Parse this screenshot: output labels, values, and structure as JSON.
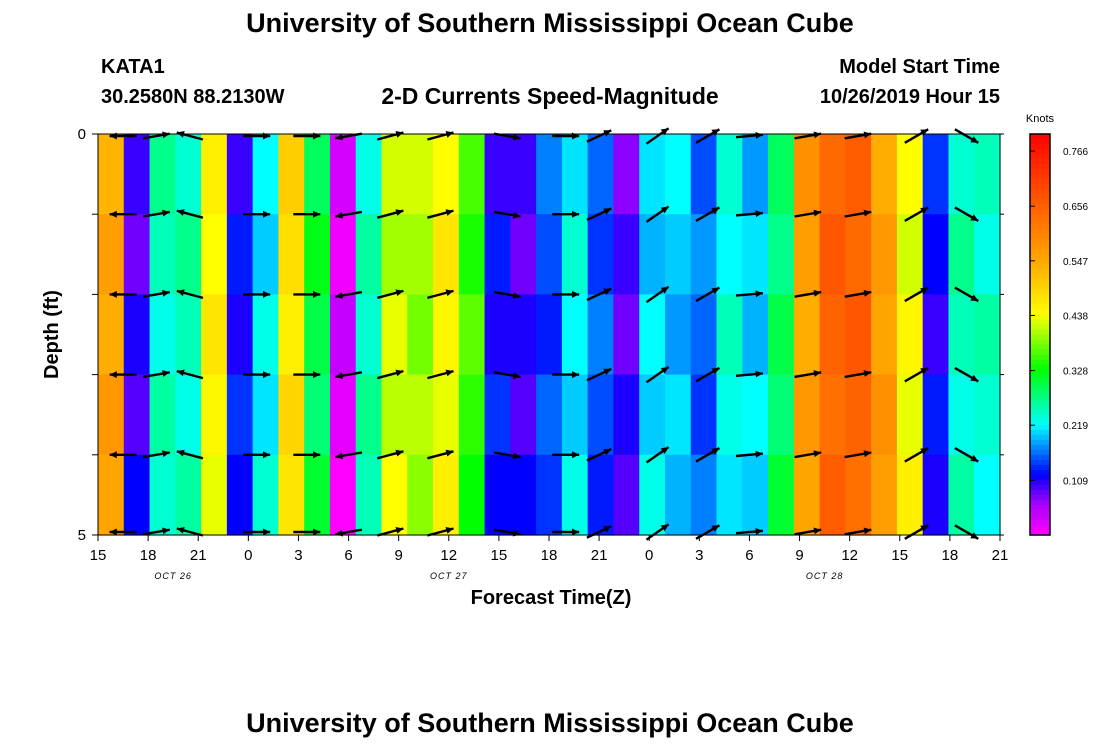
{
  "header": {
    "title": "University of Southern Mississippi Ocean Cube",
    "station_id": "KATA1",
    "station_coords": "30.2580N 88.2130W",
    "chart_title": "2-D Currents Speed-Magnitude",
    "start_label": "Model Start Time",
    "start_value": "10/26/2019 Hour 15"
  },
  "footer": {
    "title": "University of Southern Mississippi Ocean Cube"
  },
  "chart_data": {
    "type": "heatmap",
    "title": "2-D Currents Speed-Magnitude",
    "xlabel": "Forecast Time(Z)",
    "ylabel": "Depth (ft)",
    "x_range": [
      15,
      69
    ],
    "y_range": [
      0,
      5
    ],
    "y_ticks": [
      "0",
      "5"
    ],
    "x_ticks": [
      "15",
      "18",
      "21",
      "0",
      "3",
      "6",
      "9",
      "12",
      "15",
      "18",
      "21",
      "0",
      "3",
      "6",
      "9",
      "12",
      "15",
      "18",
      "21"
    ],
    "date_labels": [
      {
        "text": "OCT 26",
        "hour": 19.5
      },
      {
        "text": "OCT 27",
        "hour": 36
      },
      {
        "text": "OCT 28",
        "hour": 58.5
      }
    ],
    "colorbar": {
      "units": "Knots",
      "min": 0,
      "max": 0.8,
      "ticks": [
        "0.766",
        "0.656",
        "0.547",
        "0.438",
        "0.328",
        "0.219",
        "0.109"
      ],
      "tick_values": [
        0.766,
        0.656,
        0.547,
        0.438,
        0.328,
        0.219,
        0.109
      ]
    },
    "speed_by_hour": [
      0.55,
      0.1,
      0.25,
      0.25,
      0.45,
      0.12,
      0.22,
      0.48,
      0.3,
      0.02,
      0.25,
      0.42,
      0.4,
      0.45,
      0.35,
      0.12,
      0.1,
      0.15,
      0.22,
      0.15,
      0.09,
      0.21,
      0.2,
      0.16,
      0.23,
      0.2,
      0.29,
      0.56,
      0.65,
      0.65,
      0.56,
      0.44,
      0.12,
      0.25,
      0.24
    ],
    "arrow_hours": [
      16.5,
      18.5,
      20.5,
      24.5,
      27.5,
      30,
      32.5,
      35.5,
      39.5,
      43,
      45,
      48.5,
      51.5,
      54,
      57.5,
      60.5,
      64,
      67
    ],
    "arrow_directions_deg": [
      180,
      10,
      165,
      0,
      0,
      190,
      15,
      15,
      350,
      0,
      25,
      35,
      30,
      5,
      10,
      10,
      30,
      330
    ]
  }
}
